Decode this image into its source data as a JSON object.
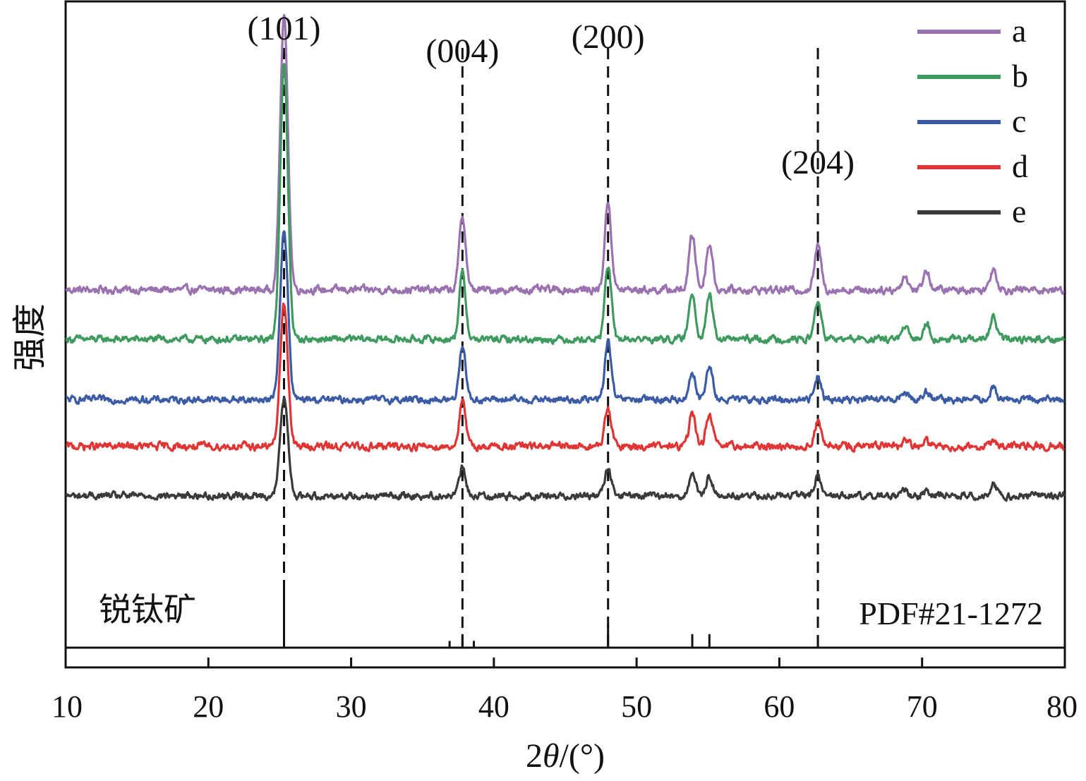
{
  "chart_data": {
    "type": "line",
    "title": "",
    "xlabel_prefix": "2",
    "xlabel_symbol": "θ",
    "xlabel_suffix": "/(°)",
    "ylabel": "强度",
    "xlim": [
      10,
      80
    ],
    "x_ticks": [
      10,
      20,
      30,
      40,
      50,
      60,
      70,
      80
    ],
    "y_ticks_shown": false,
    "legend_position": "top-right",
    "series": [
      {
        "name": "a",
        "color": "#9B72B0",
        "baseline": 1.0,
        "noise": 0.022,
        "scale": 1.0
      },
      {
        "name": "b",
        "color": "#3E9A5F",
        "baseline": 0.82,
        "noise": 0.02,
        "scale": 0.85
      },
      {
        "name": "c",
        "color": "#3B5BA5",
        "baseline": 0.6,
        "noise": 0.02,
        "scale": 0.55
      },
      {
        "name": "d",
        "color": "#E03535",
        "baseline": 0.43,
        "noise": 0.022,
        "scale": 0.22
      },
      {
        "name": "e",
        "color": "#3A3A3A",
        "baseline": 0.25,
        "noise": 0.02,
        "scale": 0.15
      }
    ],
    "peaks": [
      {
        "x": 25.3,
        "hkl": "(101)",
        "rel_heights": {
          "a": 1.0,
          "b": 1.0,
          "c": 0.62,
          "d": 0.52,
          "e": 0.36
        }
      },
      {
        "x": 37.8,
        "hkl": "(004)",
        "rel_heights": {
          "a": 0.27,
          "b": 0.24,
          "c": 0.2,
          "d": 0.16,
          "e": 0.1
        }
      },
      {
        "x": 48.0,
        "hkl": "(200)",
        "rel_heights": {
          "a": 0.32,
          "b": 0.27,
          "c": 0.21,
          "d": 0.14,
          "e": 0.1
        }
      },
      {
        "x": 53.9,
        "hkl": "",
        "rel_heights": {
          "a": 0.2,
          "b": 0.17,
          "c": 0.1,
          "d": 0.12,
          "e": 0.07
        }
      },
      {
        "x": 55.1,
        "hkl": "",
        "rel_heights": {
          "a": 0.17,
          "b": 0.16,
          "c": 0.12,
          "d": 0.12,
          "e": 0.07
        }
      },
      {
        "x": 62.7,
        "hkl": "(204)",
        "rel_heights": {
          "a": 0.16,
          "b": 0.14,
          "c": 0.09,
          "d": 0.09,
          "e": 0.07
        }
      },
      {
        "x": 68.8,
        "hkl": "",
        "rel_heights": {
          "a": 0.05,
          "b": 0.04,
          "c": 0.03,
          "d": 0.02,
          "e": 0.02
        }
      },
      {
        "x": 70.3,
        "hkl": "",
        "rel_heights": {
          "a": 0.07,
          "b": 0.06,
          "c": 0.03,
          "d": 0.02,
          "e": 0.02
        }
      },
      {
        "x": 75.0,
        "hkl": "",
        "rel_heights": {
          "a": 0.08,
          "b": 0.08,
          "c": 0.04,
          "d": 0.02,
          "e": 0.04
        }
      }
    ],
    "reference": {
      "label": "PDF#21-1272",
      "phase": "锐钛矿",
      "sticks": [
        {
          "x": 25.3,
          "intensity": 1.0
        },
        {
          "x": 36.9,
          "intensity": 0.1
        },
        {
          "x": 37.8,
          "intensity": 0.2
        },
        {
          "x": 38.6,
          "intensity": 0.1
        },
        {
          "x": 48.0,
          "intensity": 0.35
        },
        {
          "x": 53.9,
          "intensity": 0.2
        },
        {
          "x": 55.1,
          "intensity": 0.2
        },
        {
          "x": 62.7,
          "intensity": 0.14
        }
      ]
    },
    "guide_lines_at": [
      25.3,
      37.8,
      48.0,
      62.7
    ]
  }
}
